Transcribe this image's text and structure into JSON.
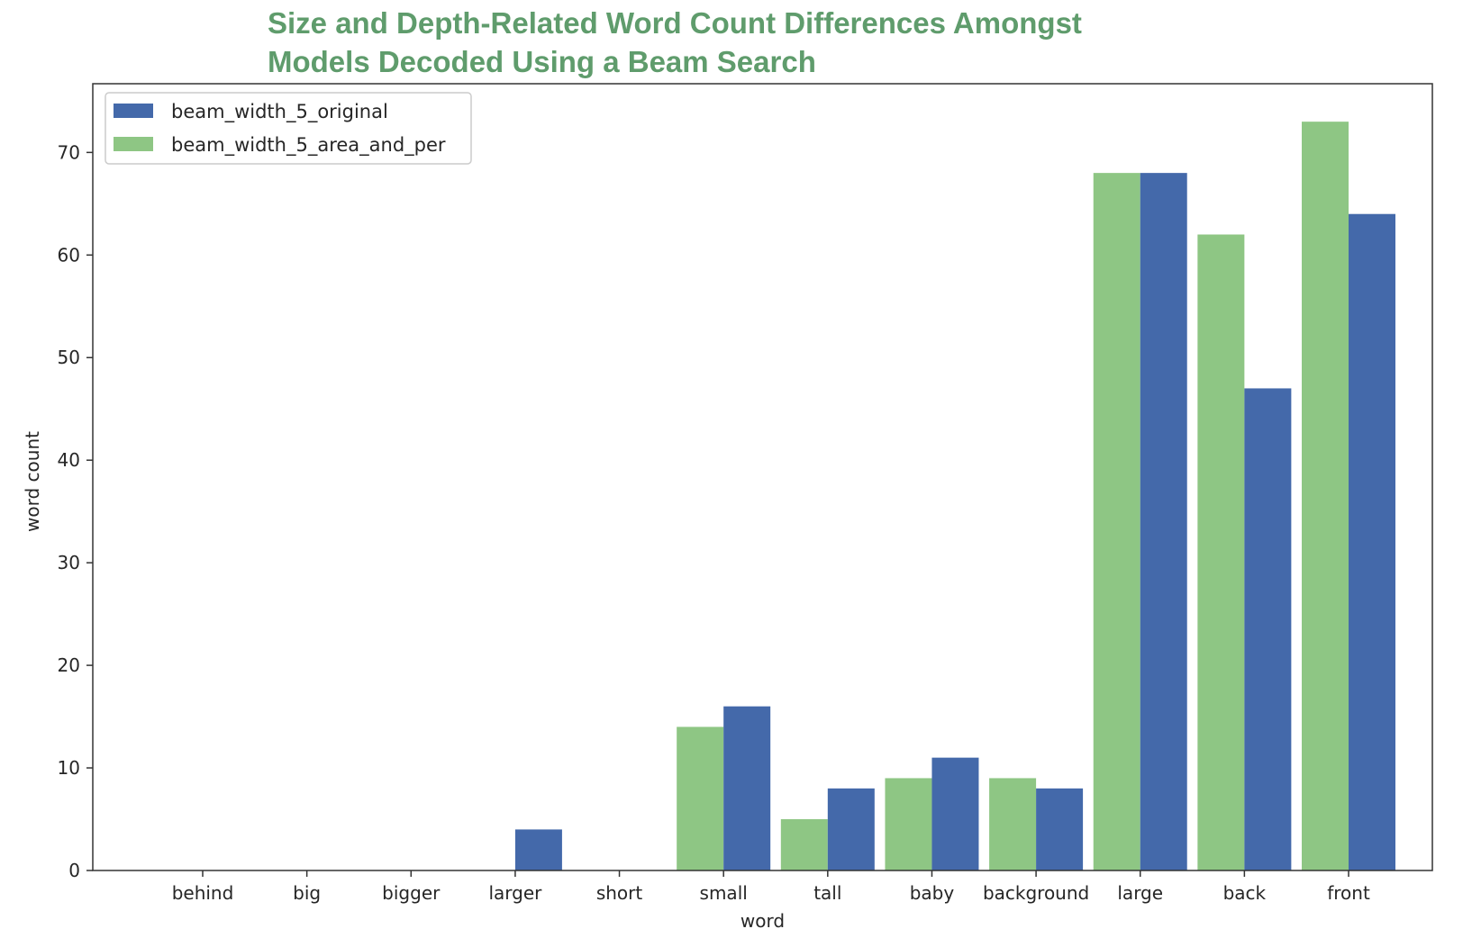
{
  "chart_data": {
    "type": "bar",
    "title": "Size and Depth-Related Word Count Differences Amongst Models Decoded Using a Beam Search",
    "xlabel": "word",
    "ylabel": "word count",
    "categories": [
      "behind",
      "big",
      "bigger",
      "larger",
      "short",
      "small",
      "tall",
      "baby",
      "background",
      "large",
      "back",
      "front"
    ],
    "series": [
      {
        "name": "beam_width_5_area_and_per",
        "color": "#8ec684",
        "values": [
          0,
          0,
          0,
          0,
          0,
          14,
          5,
          9,
          9,
          68,
          62,
          73
        ]
      },
      {
        "name": "beam_width_5_original",
        "color": "#4469aa",
        "values": [
          0,
          0,
          0,
          4,
          0,
          16,
          8,
          11,
          8,
          68,
          47,
          64
        ]
      }
    ],
    "legend_order": [
      "beam_width_5_original",
      "beam_width_5_area_and_per"
    ],
    "legend_position": "upper-left",
    "ylim": [
      0,
      76.7
    ],
    "yticks": [
      0,
      10,
      20,
      30,
      40,
      50,
      60,
      70
    ],
    "grid": false
  }
}
